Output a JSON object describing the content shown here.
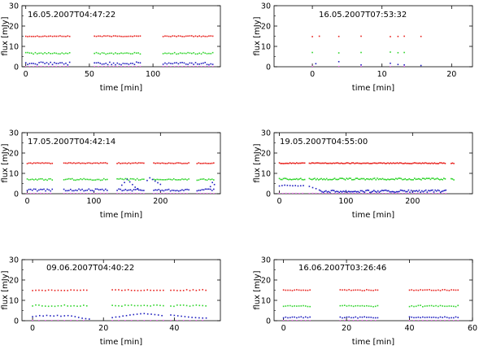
{
  "chart_data": [
    {
      "type": "scatter",
      "annotation": "16.05.2007T04:47:22",
      "xlabel": "time [min]",
      "ylabel": "flux [mJy]",
      "xlim": [
        -3,
        153
      ],
      "ylim": [
        0,
        30
      ],
      "xticks": [
        0,
        50,
        100
      ],
      "yticks": [
        0,
        10,
        20,
        30
      ],
      "series": [
        {
          "color": "#e8201c",
          "y": 15,
          "noise": 0.2,
          "segments": [
            [
              0,
              35
            ],
            [
              54,
              90
            ],
            [
              108,
              148
            ]
          ],
          "step": 1.5
        },
        {
          "color": "#2ed42a",
          "y": 6.6,
          "noise": 0.4,
          "segments": [
            [
              0,
              35
            ],
            [
              54,
              90
            ],
            [
              108,
              148
            ]
          ],
          "step": 1.5
        },
        {
          "color": "#1f1fbf",
          "y": 1.6,
          "noise": 0.7,
          "segments": [
            [
              0,
              35
            ],
            [
              54,
              90
            ],
            [
              108,
              148
            ]
          ],
          "step": 1.5
        },
        {
          "color": "#ff66ff",
          "y": 0.1,
          "noise": 0.05,
          "segments": [
            [
              0,
              35
            ],
            [
              54,
              90
            ],
            [
              108,
              148
            ]
          ],
          "step": 3
        }
      ]
    },
    {
      "type": "scatter",
      "annotation": "16.05.2007T07:53:32",
      "xlabel": "time [min]",
      "ylabel": "flux [mJy]",
      "xlim": [
        -5.5,
        23
      ],
      "ylim": [
        0,
        30
      ],
      "xticks": [
        0,
        10,
        20
      ],
      "yticks": [
        0,
        10,
        20,
        30
      ],
      "series": [
        {
          "color": "#e8201c",
          "x": [
            0,
            1,
            3.8,
            7,
            11.2,
            12.3,
            13.2,
            15.6
          ],
          "y": [
            14.8,
            15,
            14.9,
            15,
            14.8,
            14.9,
            15,
            14.9
          ]
        },
        {
          "color": "#2ed42a",
          "x": [
            0,
            3.8,
            7,
            11.2,
            12.3,
            13.2
          ],
          "y": [
            7,
            6.8,
            7,
            7.2,
            6.9,
            7
          ]
        },
        {
          "color": "#1f1fbf",
          "x": [
            0.5,
            3.8,
            7,
            11.2,
            12.3,
            13.2,
            15.6
          ],
          "y": [
            1.5,
            2.5,
            0.9,
            1.7,
            1.1,
            0.9,
            0.6
          ]
        },
        {
          "color": "#ff66ff",
          "x": [
            0,
            3.8,
            7,
            11.2,
            13.2
          ],
          "y": [
            0.1,
            0.1,
            0.1,
            0.1,
            0.1
          ]
        }
      ]
    },
    {
      "type": "scatter",
      "annotation": "17.05.2007T04:42:14",
      "xlabel": "time [min]",
      "ylabel": "flux [mJy]",
      "xlim": [
        -8,
        290
      ],
      "ylim": [
        0,
        30
      ],
      "xticks": [
        0,
        100,
        200
      ],
      "yticks": [
        0,
        10,
        20,
        30
      ],
      "series": [
        {
          "color": "#e8201c",
          "y": 15,
          "noise": 0.2,
          "segments": [
            [
              0,
              38
            ],
            [
              55,
              122
            ],
            [
              135,
              175
            ],
            [
              190,
              243
            ],
            [
              255,
              280
            ]
          ],
          "step": 2.5
        },
        {
          "color": "#2ed42a",
          "y": 7,
          "noise": 0.4,
          "segments": [
            [
              0,
              38
            ],
            [
              55,
              122
            ],
            [
              135,
              175
            ],
            [
              190,
              243
            ],
            [
              255,
              280
            ]
          ],
          "step": 2.5
        },
        {
          "color": "#1f1fbf",
          "y": 1.8,
          "noise": 0.5,
          "segments": [
            [
              0,
              38
            ],
            [
              55,
              122
            ],
            [
              135,
              175
            ],
            [
              190,
              243
            ],
            [
              255,
              280
            ]
          ],
          "step": 2.5
        },
        {
          "color": "#1f1fbf",
          "x": [
            142,
            146,
            150,
            154,
            158,
            162,
            166,
            170,
            180,
            184,
            188,
            192,
            196,
            200,
            275,
            278,
            281
          ],
          "y": [
            4.2,
            5.5,
            7,
            5.8,
            4.5,
            3.2,
            2.5,
            1.8,
            6.5,
            7.8,
            7,
            6.2,
            5.4,
            4.6,
            3.5,
            5.5,
            4.5
          ]
        },
        {
          "color": "#ff66ff",
          "y": 0.1,
          "noise": 0.05,
          "segments": [
            [
              0,
              38
            ],
            [
              55,
              122
            ],
            [
              135,
              175
            ],
            [
              190,
              243
            ],
            [
              255,
              280
            ]
          ],
          "step": 5
        }
      ]
    },
    {
      "type": "scatter",
      "annotation": "19.05.2007T04:55:00",
      "xlabel": "time [min]",
      "ylabel": "flux [mJy]",
      "xlim": [
        -8,
        290
      ],
      "ylim": [
        0,
        30
      ],
      "xticks": [
        0,
        100,
        200
      ],
      "yticks": [
        0,
        10,
        20,
        30
      ],
      "series": [
        {
          "color": "#e8201c",
          "y": 15,
          "noise": 0.2,
          "segments": [
            [
              0,
              38
            ],
            [
              45,
              250
            ],
            [
              258,
              262
            ]
          ],
          "step": 2
        },
        {
          "color": "#2ed42a",
          "y": 7.2,
          "noise": 0.4,
          "segments": [
            [
              0,
              38
            ],
            [
              45,
              250
            ],
            [
              258,
              262
            ]
          ],
          "step": 2
        },
        {
          "color": "#1f1fbf",
          "y": 1.2,
          "noise": 0.6,
          "segments": [
            [
              62,
              250
            ]
          ],
          "step": 2
        },
        {
          "color": "#1f1fbf",
          "x": [
            0,
            4,
            8,
            12,
            16,
            20,
            24,
            28,
            32,
            36,
            45,
            50,
            55,
            60
          ],
          "y": [
            3.8,
            4,
            4.2,
            4.1,
            4,
            3.9,
            4,
            3.8,
            3.9,
            4,
            3.6,
            3,
            2.5,
            1.8
          ]
        },
        {
          "color": "#ff66ff",
          "y": 0.1,
          "noise": 0.05,
          "segments": [
            [
              0,
              38
            ],
            [
              45,
              250
            ]
          ],
          "step": 5
        }
      ]
    },
    {
      "type": "scatter",
      "annotation": "09.06.2007T04:40:22",
      "xlabel": "time [min]",
      "ylabel": "flux [mJy]",
      "xlim": [
        -3,
        53
      ],
      "ylim": [
        0,
        30
      ],
      "xticks": [
        0,
        20,
        40
      ],
      "yticks": [
        0,
        10,
        20,
        30
      ],
      "series": [
        {
          "color": "#e8201c",
          "y": 15,
          "noise": 0.25,
          "segments": [
            [
              0,
              16
            ],
            [
              22.5,
              37
            ],
            [
              39,
              49
            ]
          ],
          "step": 0.9
        },
        {
          "color": "#2ed42a",
          "y": 7.4,
          "noise": 0.35,
          "segments": [
            [
              0,
              16
            ],
            [
              22.5,
              37
            ],
            [
              39,
              49
            ]
          ],
          "step": 0.9
        },
        {
          "color": "#1f1fbf",
          "x": [
            0,
            1,
            2,
            3,
            4,
            5,
            6,
            7,
            8,
            9,
            10,
            11,
            12,
            13,
            14,
            15,
            16,
            22.5,
            23.5,
            24.5,
            25.5,
            26.5,
            27.5,
            28.5,
            29.5,
            30.5,
            31.5,
            32.5,
            33.5,
            34.5,
            35.5,
            36.5,
            39,
            40,
            41,
            42,
            43,
            44,
            45,
            46,
            47,
            48,
            49
          ],
          "y": [
            2,
            2.2,
            2.5,
            2.3,
            2.6,
            2.4,
            2.3,
            2.6,
            2.2,
            2.4,
            2.5,
            2.3,
            2,
            1.6,
            1.2,
            1,
            0.8,
            1.5,
            1.8,
            1.9,
            2.3,
            2.5,
            2.8,
            3,
            3.2,
            3.4,
            3.5,
            3.3,
            3.2,
            3,
            2.8,
            2.5,
            2.8,
            2.6,
            2.4,
            2.2,
            2,
            1.8,
            1.6,
            1.5,
            1.4,
            1.3,
            1.3
          ]
        },
        {
          "color": "#ff66ff",
          "y": 0.1,
          "noise": 0.05,
          "segments": [
            [
              0,
              16
            ],
            [
              22.5,
              37
            ],
            [
              39,
              49
            ]
          ],
          "step": 1.8
        }
      ]
    },
    {
      "type": "scatter",
      "annotation": "16.06.2007T03:26:46",
      "xlabel": "time [min]",
      "ylabel": "flux [mJy]",
      "xlim": [
        -3,
        60
      ],
      "ylim": [
        0,
        30
      ],
      "xticks": [
        0,
        20,
        40,
        60
      ],
      "yticks": [
        0,
        10,
        20,
        30
      ],
      "series": [
        {
          "color": "#e8201c",
          "y": 15,
          "noise": 0.25,
          "segments": [
            [
              0,
              9
            ],
            [
              18,
              30
            ],
            [
              40,
              56
            ]
          ],
          "step": 0.7
        },
        {
          "color": "#2ed42a",
          "y": 7.2,
          "noise": 0.35,
          "segments": [
            [
              0,
              9
            ],
            [
              18,
              30
            ],
            [
              40,
              56
            ]
          ],
          "step": 0.7
        },
        {
          "color": "#1f1fbf",
          "y": 1.6,
          "noise": 0.3,
          "segments": [
            [
              0,
              9
            ],
            [
              18,
              30
            ],
            [
              40,
              56
            ]
          ],
          "step": 0.7
        },
        {
          "color": "#ff66ff",
          "y": 0.1,
          "noise": 0.05,
          "segments": [
            [
              0,
              9
            ],
            [
              18,
              30
            ],
            [
              40,
              56
            ]
          ],
          "step": 1.4
        }
      ]
    }
  ]
}
